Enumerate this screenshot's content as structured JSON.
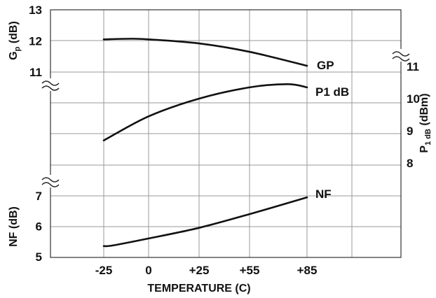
{
  "chart_data": {
    "type": "line",
    "title": "",
    "grid": true,
    "x_axis": {
      "label": "TEMPERATURE (C)",
      "ticks": [
        -25,
        0,
        25,
        55,
        85
      ],
      "tick_labels": [
        "-25",
        "0",
        "+25",
        "+55",
        "+85"
      ]
    },
    "left_axis_gp": {
      "label_main": "G",
      "label_sub": "p",
      "label_unit": " (dB)",
      "range": [
        11,
        13
      ],
      "ticks": [
        11,
        12,
        13
      ]
    },
    "right_axis_p1db": {
      "label_main": "P",
      "label_sub": "1 dB",
      "label_unit": " (dBm)",
      "range": [
        8,
        11
      ],
      "ticks": [
        8,
        9,
        10,
        11
      ]
    },
    "left_axis_nf": {
      "label": "NF (dB)",
      "range": [
        5,
        7
      ],
      "ticks": [
        5,
        6,
        7
      ]
    },
    "series": [
      {
        "name": "GP",
        "axis": "left_axis_gp",
        "x": [
          -25,
          -10,
          0,
          25,
          55,
          85
        ],
        "y": [
          12.05,
          12.07,
          12.05,
          11.92,
          11.65,
          11.2
        ]
      },
      {
        "name": "P1 dB",
        "axis": "right_axis_p1db",
        "x": [
          -25,
          0,
          25,
          55,
          75,
          85
        ],
        "y": [
          8.7,
          9.45,
          10.0,
          10.35,
          10.45,
          10.35
        ]
      },
      {
        "name": "NF",
        "axis": "left_axis_nf",
        "x": [
          -25,
          -20,
          0,
          25,
          55,
          85
        ],
        "y": [
          5.35,
          5.37,
          5.6,
          5.95,
          6.4,
          6.95
        ]
      }
    ]
  }
}
